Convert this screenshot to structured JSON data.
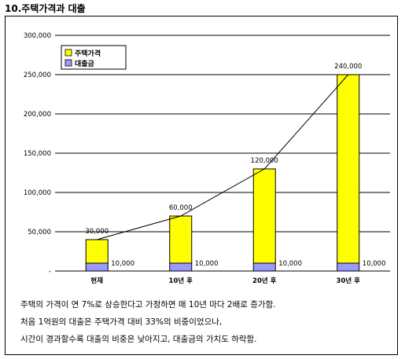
{
  "title": "10.주택가격과 대출",
  "notes": [
    "주택의 가격이 연 7%로 상승한다고 가정하면 매 10년 마다 2배로 증가함.",
    "처음 1억원의 대출은 주택가격 대비 33%의 비중이었으나,",
    "시간이 경과할수록 대출의 비중은 낮아지고, 대출금의 가치도 하락함."
  ],
  "colors": {
    "house": "#ffff00",
    "loan": "#9999ff",
    "grid": "#000000"
  },
  "chart_data": {
    "type": "bar",
    "stacked": true,
    "title": "",
    "xlabel": "",
    "ylabel": "",
    "categories": [
      "현재",
      "10년 후",
      "20년 후",
      "30년 후"
    ],
    "ylim": [
      0,
      300000
    ],
    "yticks": [
      0,
      50000,
      100000,
      150000,
      200000,
      250000,
      300000
    ],
    "ytick_labels": [
      "-",
      "50,000",
      "100,000",
      "150,000",
      "200,000",
      "250,000",
      "300,000"
    ],
    "grid": true,
    "legend": "top-left",
    "series": [
      {
        "name": "대출금",
        "values": [
          10000,
          10000,
          10000,
          10000
        ],
        "labels": [
          "10,000",
          "10,000",
          "10,000",
          "10,000"
        ],
        "color": "#9999ff"
      },
      {
        "name": "주택가격",
        "values": [
          30000,
          60000,
          120000,
          240000
        ],
        "labels": [
          "30,000",
          "60,000",
          "120,000",
          "240,000"
        ],
        "color": "#ffff00"
      }
    ]
  }
}
